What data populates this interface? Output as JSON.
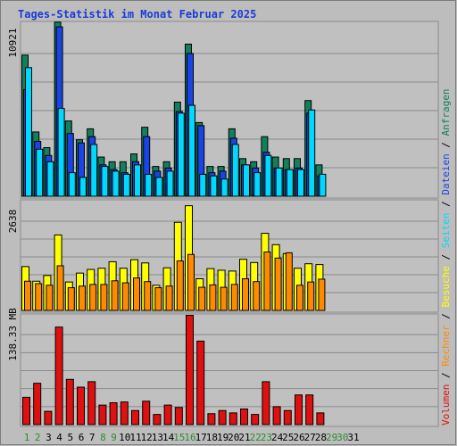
{
  "title": "Tages-Statistik im Monat Februar 2025",
  "colors": {
    "background": "#bdbdbd",
    "panel_bg": "#c0c0c0",
    "frame": "#8c8c8c",
    "grid": "#8a8a8a",
    "title": "#1a3bd6",
    "weekday_label": "#000000",
    "weekend_label": "#2f8a2f",
    "anfragen": "#12805a",
    "dateien": "#1a44e6",
    "seiten": "#00d9ff",
    "besuche": "#ffff00",
    "rechner": "#ff8a00",
    "volumen": "#e01010"
  },
  "chart_data": [
    {
      "type": "bar",
      "panel": "top",
      "ylabel": "10921",
      "ylim": [
        0,
        10921
      ],
      "grid": true,
      "categories": [
        "1",
        "2",
        "3",
        "4",
        "5",
        "6",
        "7",
        "8",
        "9",
        "10",
        "11",
        "12",
        "13",
        "14",
        "15",
        "16",
        "17",
        "18",
        "19",
        "20",
        "21",
        "22",
        "23",
        "24",
        "25",
        "26",
        "27",
        "28",
        "29",
        "30",
        "31"
      ],
      "weekend_days": [
        "1",
        "2",
        "8",
        "9",
        "15",
        "16",
        "22",
        "23",
        "29",
        "30"
      ],
      "series": [
        {
          "name": "Anfragen",
          "color_key": "anfragen",
          "values": [
            9000,
            4100,
            3100,
            11100,
            4800,
            3600,
            4300,
            2500,
            2200,
            2200,
            2700,
            4400,
            1900,
            2200,
            6000,
            9700,
            4700,
            1900,
            1900,
            4300,
            2400,
            2200,
            3800,
            2500,
            2400,
            2400,
            6100,
            2000,
            0,
            0,
            0
          ]
        },
        {
          "name": "Dateien",
          "color_key": "dateien",
          "values": [
            6800,
            3500,
            2600,
            10800,
            4000,
            3400,
            3800,
            2000,
            1700,
            1500,
            2200,
            3800,
            1600,
            1800,
            5400,
            9100,
            4500,
            1500,
            1600,
            3700,
            2000,
            1800,
            2800,
            1800,
            1700,
            1800,
            5300,
            1300,
            0,
            0,
            0
          ]
        },
        {
          "name": "Seiten",
          "color_key": "seiten",
          "values": [
            8200,
            3000,
            2200,
            5600,
            1500,
            1200,
            3300,
            1900,
            1600,
            1400,
            2000,
            1400,
            1200,
            1600,
            5300,
            5800,
            1400,
            1300,
            1100,
            3300,
            2000,
            1500,
            2600,
            1800,
            1700,
            1700,
            5500,
            1400,
            0,
            0,
            0
          ]
        }
      ]
    },
    {
      "type": "bar",
      "panel": "middle",
      "ylabel": "2638",
      "ylim": [
        0,
        2638
      ],
      "grid": true,
      "categories": [
        "1",
        "2",
        "3",
        "4",
        "5",
        "6",
        "7",
        "8",
        "9",
        "10",
        "11",
        "12",
        "13",
        "14",
        "15",
        "16",
        "17",
        "18",
        "19",
        "20",
        "21",
        "22",
        "23",
        "24",
        "25",
        "26",
        "27",
        "28",
        "29",
        "30",
        "31"
      ],
      "series": [
        {
          "name": "Besuche",
          "color_key": "besuche",
          "values": [
            1080,
            720,
            860,
            1860,
            700,
            920,
            1010,
            1040,
            1200,
            1040,
            1250,
            1170,
            620,
            1050,
            2170,
            2580,
            780,
            1030,
            990,
            970,
            1260,
            1180,
            1900,
            1620,
            1400,
            1040,
            1150,
            1130,
            0,
            0,
            0
          ]
        },
        {
          "name": "Rechner",
          "color_key": "rechner",
          "values": [
            720,
            660,
            620,
            1100,
            560,
            600,
            640,
            640,
            730,
            680,
            800,
            710,
            560,
            600,
            1220,
            1380,
            570,
            630,
            570,
            640,
            780,
            710,
            1440,
            1290,
            1420,
            620,
            700,
            770,
            0,
            0,
            0
          ]
        }
      ]
    },
    {
      "type": "bar",
      "panel": "bottom",
      "ylabel": "138.33 MB",
      "ylim": [
        0,
        138.33
      ],
      "grid": true,
      "categories": [
        "1",
        "2",
        "3",
        "4",
        "5",
        "6",
        "7",
        "8",
        "9",
        "10",
        "11",
        "12",
        "13",
        "14",
        "15",
        "16",
        "17",
        "18",
        "19",
        "20",
        "21",
        "22",
        "23",
        "24",
        "25",
        "26",
        "27",
        "28",
        "29",
        "30",
        "31"
      ],
      "series": [
        {
          "name": "Volumen",
          "color_key": "volumen",
          "values": [
            35,
            53,
            17,
            125,
            58,
            48,
            55,
            25,
            28,
            29,
            18,
            30,
            13,
            25,
            22,
            140,
            107,
            14,
            18,
            15,
            20,
            13,
            55,
            23,
            18,
            38,
            38,
            15,
            0,
            0,
            0
          ]
        }
      ]
    }
  ],
  "right_legend": [
    {
      "text": "Volumen",
      "color_key": "volumen"
    },
    {
      "text": " / ",
      "color_key": "weekday_label"
    },
    {
      "text": "Rechner",
      "color_key": "rechner"
    },
    {
      "text": " / ",
      "color_key": "weekday_label"
    },
    {
      "text": "Besuche",
      "color_key": "besuche"
    },
    {
      "text": " / ",
      "color_key": "weekday_label"
    },
    {
      "text": "Seiten",
      "color_key": "seiten"
    },
    {
      "text": " / ",
      "color_key": "weekday_label"
    },
    {
      "text": "Dateien",
      "color_key": "dateien"
    },
    {
      "text": " / ",
      "color_key": "weekday_label"
    },
    {
      "text": "Anfragen",
      "color_key": "anfragen"
    }
  ]
}
